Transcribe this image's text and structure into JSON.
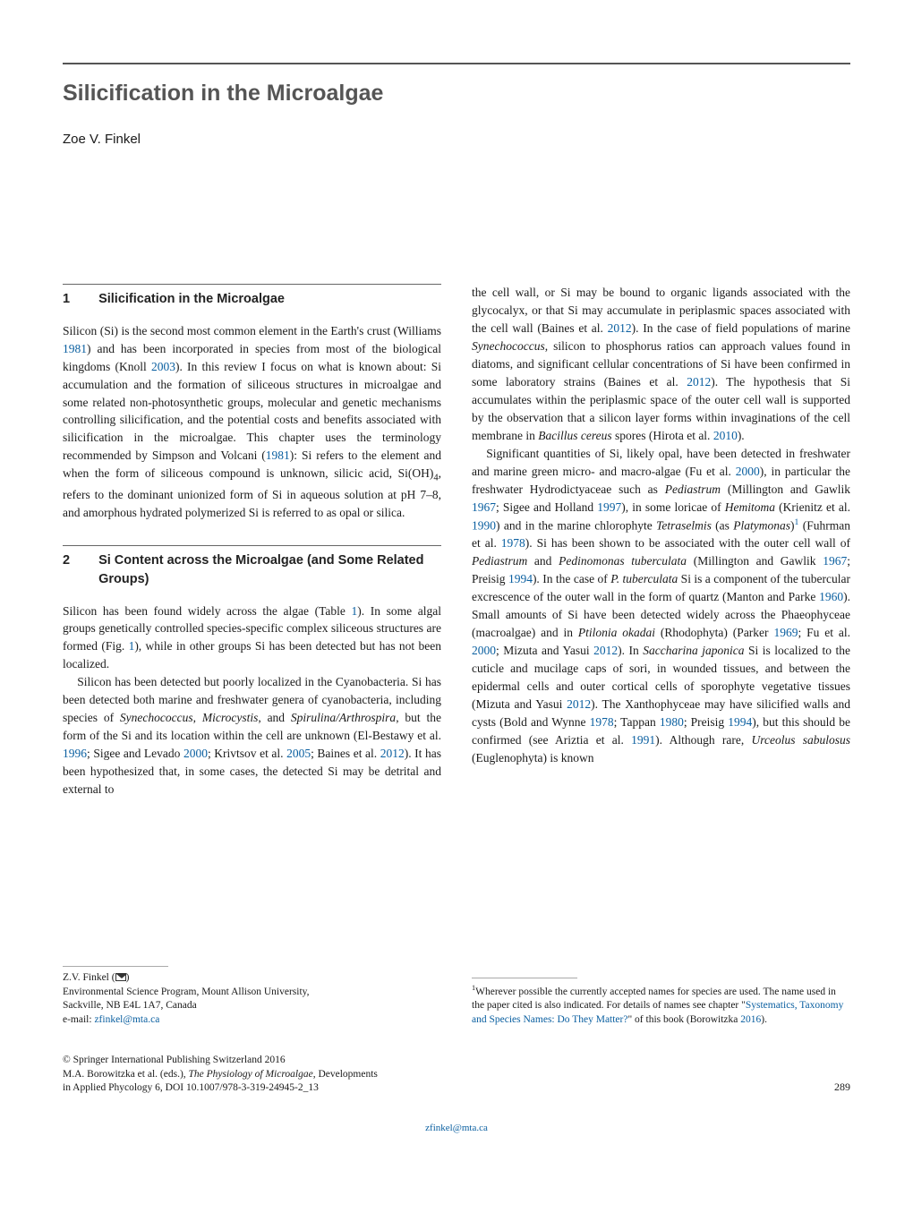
{
  "title": "Silicification in the Microalgae",
  "author": "Zoe V. Finkel",
  "section1": {
    "num": "1",
    "title": "Silicification in the Microalgae",
    "para1_parts": [
      {
        "text": "Silicon (Si) is the second most common element in the Earth's crust (Williams "
      },
      {
        "text": "1981",
        "ref": true
      },
      {
        "text": ") and has been incorporated in species from most of the biological kingdoms (Knoll "
      },
      {
        "text": "2003",
        "ref": true
      },
      {
        "text": "). In this review I focus on what is known about: Si accumulation and the formation of siliceous structures in microalgae and some related non-photosynthetic groups, molecular and genetic mechanisms controlling silicification, and the potential costs and benefits associated with silicification in the microalgae. This chapter uses the terminology recommended by Simpson and Volcani ("
      },
      {
        "text": "1981",
        "ref": true
      },
      {
        "text": "): Si refers to the element and when the form of siliceous compound is unknown, silicic acid, Si(OH)"
      },
      {
        "text": "4",
        "sub": true
      },
      {
        "text": ", refers to the dominant unionized form of Si in aqueous solution at pH 7–8, and amorphous hydrated polymerized Si is referred to as opal or silica."
      }
    ]
  },
  "section2": {
    "num": "2",
    "title": "Si Content across the Microalgae (and Some Related Groups)",
    "para1_parts": [
      {
        "text": "Silicon has been found widely across the algae (Table "
      },
      {
        "text": "1",
        "ref": true
      },
      {
        "text": "). In some algal groups genetically controlled species-specific complex siliceous structures are formed (Fig. "
      },
      {
        "text": "1",
        "ref": true
      },
      {
        "text": "), while in other groups Si has been detected but has not been localized."
      }
    ],
    "para2_parts": [
      {
        "text": "Silicon has been detected but poorly localized in the Cyanobacteria. Si has been detected both marine and freshwater genera of cyanobacteria, including species of "
      },
      {
        "text": "Synechococcus",
        "ital": true
      },
      {
        "text": ", "
      },
      {
        "text": "Microcystis",
        "ital": true
      },
      {
        "text": ", and "
      },
      {
        "text": "Spirulina/Arthrospira",
        "ital": true
      },
      {
        "text": ", but the form of the Si and its location within the cell are unknown (El-Bestawy et al. "
      },
      {
        "text": "1996",
        "ref": true
      },
      {
        "text": "; Sigee and Levado "
      },
      {
        "text": "2000",
        "ref": true
      },
      {
        "text": "; Krivtsov et al. "
      },
      {
        "text": "2005",
        "ref": true
      },
      {
        "text": "; Baines et al. "
      },
      {
        "text": "2012",
        "ref": true
      },
      {
        "text": "). It has been hypothesized that, in some cases, the detected Si may be detrital and external to "
      }
    ]
  },
  "col2": {
    "para1_parts": [
      {
        "text": "the cell wall, or Si may be bound to organic ligands associated with the glycocalyx, or that Si may accumulate in periplasmic spaces associated with the cell wall (Baines et al. "
      },
      {
        "text": "2012",
        "ref": true
      },
      {
        "text": "). In the case of field populations of marine "
      },
      {
        "text": "Synechococcus",
        "ital": true
      },
      {
        "text": ", silicon to phosphorus ratios can approach values found in diatoms, and significant cellular concentrations of Si have been confirmed in some laboratory strains (Baines et al. "
      },
      {
        "text": "2012",
        "ref": true
      },
      {
        "text": "). The hypothesis that Si accumulates within the periplasmic space of the outer cell wall is supported by the observation that a silicon layer forms within invaginations of the cell membrane in "
      },
      {
        "text": "Bacillus cereus",
        "ital": true
      },
      {
        "text": " spores (Hirota et al. "
      },
      {
        "text": "2010",
        "ref": true
      },
      {
        "text": ")."
      }
    ],
    "para2_parts": [
      {
        "text": "Significant quantities of Si, likely opal, have been detected in freshwater and marine green micro- and macro-algae (Fu et al. "
      },
      {
        "text": "2000",
        "ref": true
      },
      {
        "text": "), in particular the freshwater Hydrodictyaceae such as "
      },
      {
        "text": "Pediastrum",
        "ital": true
      },
      {
        "text": " (Millington and Gawlik "
      },
      {
        "text": "1967",
        "ref": true
      },
      {
        "text": "; Sigee and Holland "
      },
      {
        "text": "1997",
        "ref": true
      },
      {
        "text": "), in some loricae of "
      },
      {
        "text": "Hemitoma",
        "ital": true
      },
      {
        "text": " (Krienitz et al. "
      },
      {
        "text": "1990",
        "ref": true
      },
      {
        "text": ") and in the marine chlorophyte "
      },
      {
        "text": "Tetraselmis",
        "ital": true
      },
      {
        "text": " (as "
      },
      {
        "text": "Platymonas",
        "ital": true
      },
      {
        "text": ")"
      },
      {
        "text": "1",
        "sup": true,
        "ref": true
      },
      {
        "text": " (Fuhrman et al. "
      },
      {
        "text": "1978",
        "ref": true
      },
      {
        "text": "). Si has been shown to be associated with the outer cell wall of "
      },
      {
        "text": "Pediastrum",
        "ital": true
      },
      {
        "text": " and "
      },
      {
        "text": "Pedinomonas tuberculata",
        "ital": true
      },
      {
        "text": " (Millington and Gawlik "
      },
      {
        "text": "1967",
        "ref": true
      },
      {
        "text": "; Preisig "
      },
      {
        "text": "1994",
        "ref": true
      },
      {
        "text": "). In the case of "
      },
      {
        "text": "P. tuberculata",
        "ital": true
      },
      {
        "text": " Si is a component of the tubercular excrescence of the outer wall in the form of quartz (Manton and Parke "
      },
      {
        "text": "1960",
        "ref": true
      },
      {
        "text": "). Small amounts of Si have been detected widely across the Phaeophyceae (macroalgae) and in "
      },
      {
        "text": "Ptilonia okadai",
        "ital": true
      },
      {
        "text": " (Rhodophyta) (Parker "
      },
      {
        "text": "1969",
        "ref": true
      },
      {
        "text": "; Fu et al. "
      },
      {
        "text": "2000",
        "ref": true
      },
      {
        "text": "; Mizuta and Yasui "
      },
      {
        "text": "2012",
        "ref": true
      },
      {
        "text": "). In "
      },
      {
        "text": "Saccharina japonica",
        "ital": true
      },
      {
        "text": " Si is localized to the cuticle and mucilage caps of sori, in wounded tissues, and between the epidermal cells and outer cortical cells of sporophyte vegetative tissues (Mizuta and Yasui "
      },
      {
        "text": "2012",
        "ref": true
      },
      {
        "text": "). The Xanthophyceae may have silicified walls and cysts (Bold and Wynne "
      },
      {
        "text": "1978",
        "ref": true
      },
      {
        "text": "; Tappan "
      },
      {
        "text": "1980",
        "ref": true
      },
      {
        "text": "; Preisig "
      },
      {
        "text": "1994",
        "ref": true
      },
      {
        "text": "), but this should be confirmed (see Ariztia et al. "
      },
      {
        "text": "1991",
        "ref": true
      },
      {
        "text": "). Although rare, "
      },
      {
        "text": "Urceolus sabulosus",
        "ital": true
      },
      {
        "text": " (Euglenophyta) is known"
      }
    ]
  },
  "affiliation": {
    "name": "Z.V. Finkel",
    "line1": "Environmental Science Program, Mount Allison University,",
    "line2": "Sackville, NB E4L 1A7, Canada",
    "email_label": "e-mail: ",
    "email": "zfinkel@mta.ca"
  },
  "footnote1_parts": [
    {
      "text": "1",
      "sup": true
    },
    {
      "text": "Wherever possible the currently accepted names for species are used. The name used in the paper cited is also indicated. For details of names see chapter \""
    },
    {
      "text": "Systematics, Taxonomy and Species Names: Do They Matter?",
      "ref": true
    },
    {
      "text": "\" of this book (Borowitzka "
    },
    {
      "text": "2016",
      "ref": true
    },
    {
      "text": ")."
    }
  ],
  "copyright": {
    "line1": "© Springer International Publishing Switzerland 2016",
    "line2_parts": [
      {
        "text": "M.A. Borowitzka et al. (eds.), "
      },
      {
        "text": "The Physiology of Microalgae",
        "ital": true
      },
      {
        "text": ", Developments"
      }
    ],
    "line3": "in Applied Phycology 6, DOI 10.1007/978-3-319-24945-2_13"
  },
  "page_number": "289",
  "footer_email": "zfinkel@mta.ca"
}
